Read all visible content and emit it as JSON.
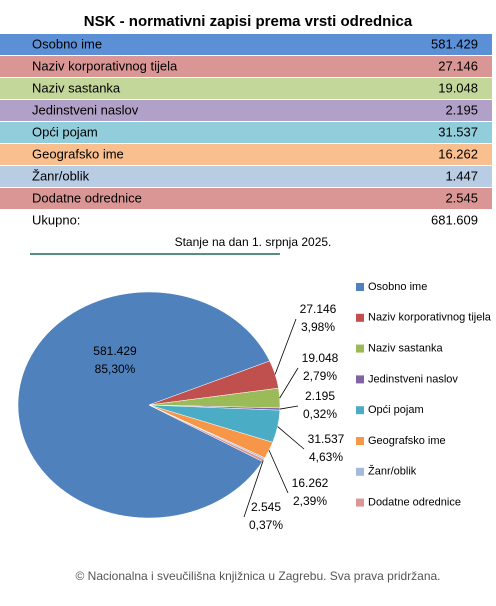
{
  "header": {
    "title": "NSK - normativni zapisi prema vrsti odrednica"
  },
  "table": {
    "rows": [
      [
        "Osobno ime",
        "581.429"
      ],
      [
        "Naziv korporativnog tijela",
        "27.146"
      ],
      [
        "Naziv sastanka",
        "19.048"
      ],
      [
        "Jedinstveni naslov",
        "2.195"
      ],
      [
        "Opći pojam",
        "31.537"
      ],
      [
        "Geografsko ime",
        "16.262"
      ],
      [
        "Žanr/oblik",
        "1.447"
      ],
      [
        "Dodatne odrednice",
        "2.545"
      ]
    ],
    "row_colors": [
      "#5b8fd6",
      "#da9694",
      "#c4d79b",
      "#b1a0c7",
      "#92cddc",
      "#fabf8f",
      "#b8cce4",
      "#da9694"
    ],
    "total": [
      "Ukupno:",
      "681.609"
    ]
  },
  "chart_data": {
    "type": "pie",
    "title": "Stanje na dan 1. srpnja 2025.",
    "categories": [
      "Osobno ime",
      "Naziv korporativnog tijela",
      "Naziv sastanka",
      "Jedinstveni naslov",
      "Opći pojam",
      "Geografsko ime",
      "Žanr/oblik",
      "Dodatne odrednice"
    ],
    "values": [
      581429,
      27146,
      19048,
      2195,
      31537,
      16262,
      1447,
      2545
    ],
    "value_labels": [
      "581.429",
      "27.146",
      "19.048",
      "2.195",
      "31.537",
      "16.262",
      null,
      "2.545"
    ],
    "percent_labels": [
      "85,30%",
      "3,98%",
      "2,79%",
      "0,32%",
      "4,63%",
      "2,39%",
      null,
      "0,37%"
    ],
    "colors": [
      "#4f81bd",
      "#c0504d",
      "#9bbb59",
      "#8064a2",
      "#4bacc6",
      "#f79646",
      "#a5b9dc",
      "#d99694"
    ],
    "legend": "right"
  },
  "footer": {
    "text": "© Nacionalna i sveučilišna knjižnica u Zagrebu. Sva prava pridržana."
  }
}
